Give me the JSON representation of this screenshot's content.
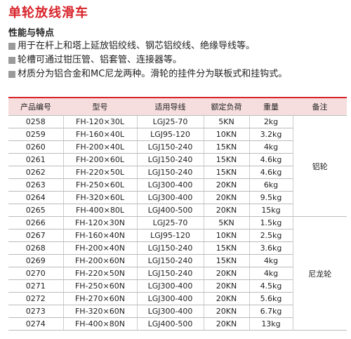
{
  "title": "单轮放线滑车",
  "section": {
    "heading": "性能与特点",
    "bullets": [
      "用于在杆上和塔上延放铝绞线、钢芯铝绞线、绝缘导线等。",
      "轮槽可通过钳压管、铝套管、连接器等。",
      "材质分为铝合金和MC尼龙两种。滑轮的挂件分为联板式和挂钩式。"
    ]
  },
  "table": {
    "header": [
      "产品编号",
      "型号",
      "适用导线",
      "额定负荷",
      "重量",
      "备注"
    ],
    "groups": [
      {
        "remark": "铝轮",
        "rows": [
          [
            "0258",
            "FH-120×30L",
            "LGJ25-70",
            "5KN",
            "2kg"
          ],
          [
            "0259",
            "FH-160×40L",
            "LGJ95-120",
            "10KN",
            "3.2kg"
          ],
          [
            "0260",
            "FH-200×40L",
            "LGJ150-240",
            "15KN",
            "4kg"
          ],
          [
            "0261",
            "FH-200×60L",
            "LGJ150-240",
            "15KN",
            "4.6kg"
          ],
          [
            "0262",
            "FH-220×50L",
            "LGJ150-240",
            "15KN",
            "4.6kg"
          ],
          [
            "0263",
            "FH-250×60L",
            "LGJ300-400",
            "20KN",
            "6kg"
          ],
          [
            "0264",
            "FH-320×60L",
            "LGJ300-400",
            "20KN",
            "9.5kg"
          ],
          [
            "0265",
            "FH-400×80L",
            "LGJ400-500",
            "20KN",
            "15kg"
          ]
        ]
      },
      {
        "remark": "尼龙轮",
        "rows": [
          [
            "0266",
            "FH-120×30N",
            "LGJ25-70",
            "5KN",
            "1.5kg"
          ],
          [
            "0267",
            "FH-160×40N",
            "LGJ95-120",
            "10KN",
            "2.5kg"
          ],
          [
            "0268",
            "FH-200×40N",
            "LGJ150-240",
            "15KN",
            "3.6kg"
          ],
          [
            "0269",
            "FH-200×60N",
            "LGJ150-240",
            "15KN",
            "4kg"
          ],
          [
            "0270",
            "FH-220×50N",
            "LGJ150-240",
            "20KN",
            "4kg"
          ],
          [
            "0271",
            "FH-250×60N",
            "LGJ300-400",
            "20KN",
            "4.5kg"
          ],
          [
            "0272",
            "FH-270×60N",
            "LGJ300-400",
            "20KN",
            "5.6kg"
          ],
          [
            "0273",
            "FH-320×60N",
            "LGJ300-400",
            "20KN",
            "6.7kg"
          ],
          [
            "0274",
            "FH-400×80N",
            "LGJ400-500",
            "20KN",
            "13kg"
          ]
        ]
      }
    ]
  }
}
